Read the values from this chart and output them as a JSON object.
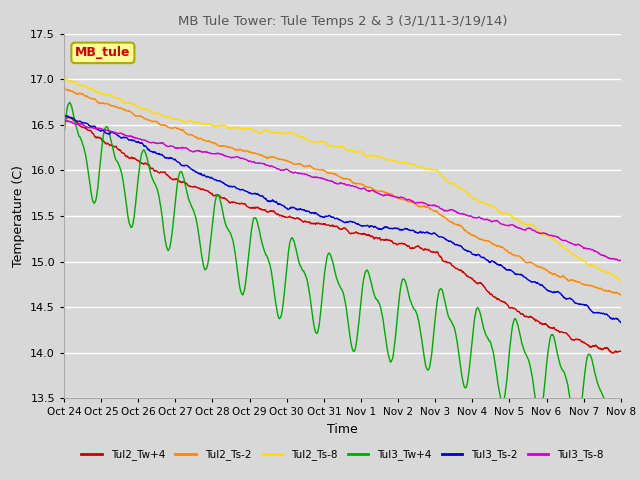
{
  "title": "MB Tule Tower: Tule Temps 2 & 3 (3/1/11-3/19/14)",
  "xlabel": "Time",
  "ylabel": "Temperature (C)",
  "ylim": [
    13.5,
    17.5
  ],
  "yticks": [
    13.5,
    14.0,
    14.5,
    15.0,
    15.5,
    16.0,
    16.5,
    17.0,
    17.5
  ],
  "xtick_labels": [
    "Oct 24",
    "Oct 25",
    "Oct 26",
    "Oct 27",
    "Oct 28",
    "Oct 29",
    "Oct 30",
    "Oct 31",
    "Nov 1",
    "Nov 2",
    "Nov 3",
    "Nov 4",
    "Nov 5",
    "Nov 6",
    "Nov 7",
    "Nov 8"
  ],
  "legend_label": "MB_tule",
  "series": [
    {
      "name": "Tul2_Tw+4",
      "color": "#cc0000"
    },
    {
      "name": "Tul2_Ts-2",
      "color": "#ff8800"
    },
    {
      "name": "Tul2_Ts-8",
      "color": "#ffdd00"
    },
    {
      "name": "Tul3_Tw+4",
      "color": "#00aa00"
    },
    {
      "name": "Tul3_Ts-2",
      "color": "#0000cc"
    },
    {
      "name": "Tul3_Ts-8",
      "color": "#cc00cc"
    }
  ],
  "bg_color": "#d8d8d8",
  "plot_bg_color": "#d8d8d8",
  "grid_color": "#ffffff"
}
